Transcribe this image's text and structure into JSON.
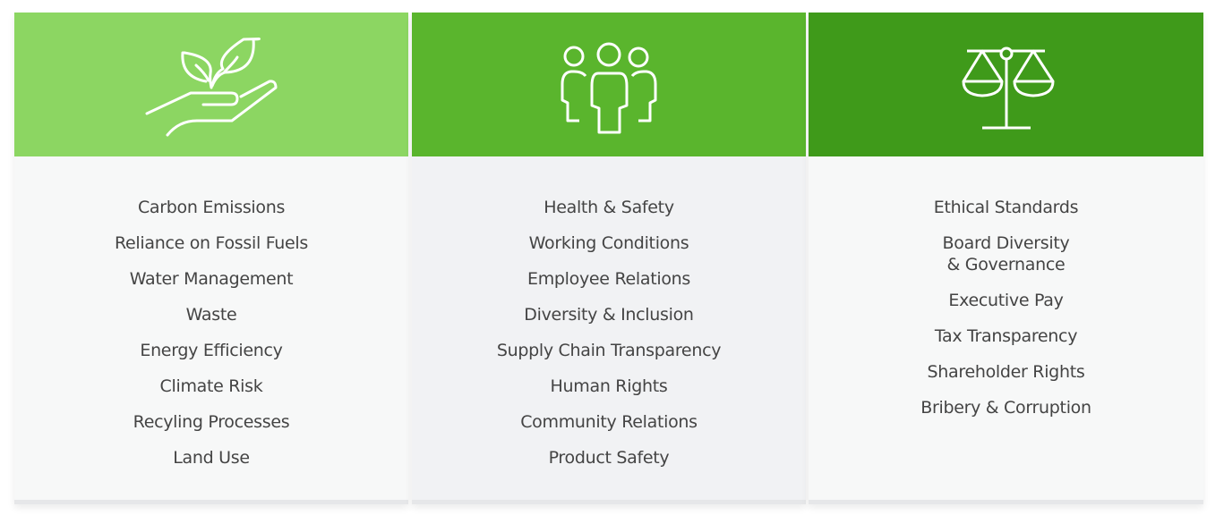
{
  "colors": {
    "environmental": "#8cd662",
    "social": "#5ab52d",
    "governance": "#3f9a1a"
  },
  "columns": [
    {
      "icon": "hand-plant-icon",
      "items": [
        "Carbon Emissions",
        "Reliance on Fossil Fuels",
        "Water Management",
        "Waste",
        "Energy Efficiency",
        "Climate Risk",
        "Recyling Processes",
        "Land Use"
      ]
    },
    {
      "icon": "people-group-icon",
      "items": [
        "Health & Safety",
        "Working Conditions",
        "Employee Relations",
        "Diversity & Inclusion",
        "Supply Chain Transparency",
        "Human Rights",
        "Community Relations",
        "Product Safety"
      ]
    },
    {
      "icon": "scales-icon",
      "items": [
        "Ethical Standards",
        "Board Diversity\n& Governance",
        "Executive Pay",
        "Tax Transparency",
        "Shareholder Rights",
        "Bribery & Corruption"
      ]
    }
  ]
}
